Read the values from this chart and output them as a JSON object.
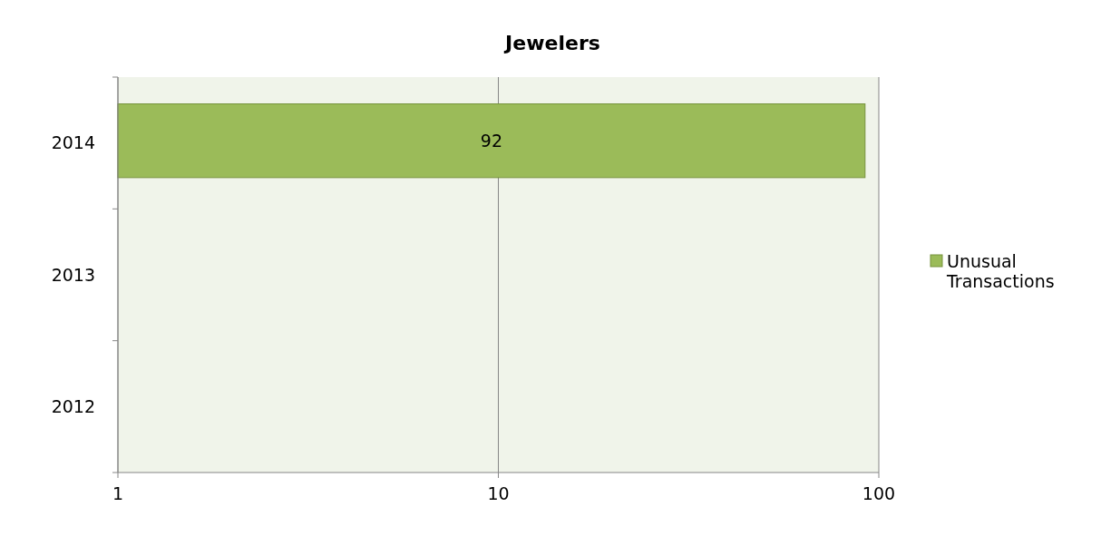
{
  "chart_data": {
    "type": "bar",
    "orientation": "horizontal",
    "title": "Jewelers",
    "categories": [
      "2014",
      "2013",
      "2012"
    ],
    "series": [
      {
        "name": "Unusual Transactions",
        "color": "#9bbb59",
        "values": [
          92,
          1,
          1
        ],
        "value_labels": [
          "92",
          null,
          null
        ]
      }
    ],
    "log": "x",
    "xlim": [
      1,
      100
    ],
    "xticks": [
      1,
      10,
      100
    ],
    "grid": "x",
    "legend": "right"
  }
}
